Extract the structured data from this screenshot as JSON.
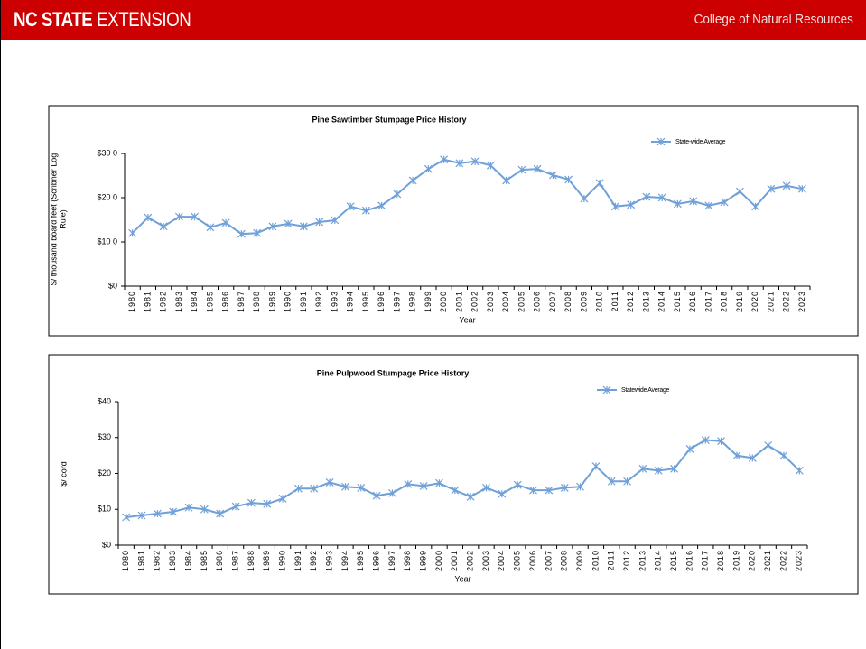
{
  "header": {
    "brand_bold": "NC STATE",
    "brand": "EXTENSION",
    "college": "College of Natural Resources"
  },
  "chart_data": [
    {
      "type": "line",
      "title": "Pine Sawtimber Stumpage Price History",
      "x_label": "Year",
      "y_label": [
        "$/ thousand board feet (Scribner Log",
        "Rule)"
      ],
      "categories": [
        "1980",
        "1981",
        "1982",
        "1983",
        "1984",
        "1985",
        "1986",
        "1987",
        "1988",
        "1989",
        "1990",
        "1991",
        "1992",
        "1993",
        "1994",
        "1995",
        "1996",
        "1997",
        "1998",
        "1999",
        "2000",
        "2001",
        "2002",
        "2003",
        "2004",
        "2005",
        "2006",
        "2007",
        "2008",
        "2009",
        "2010",
        "2011",
        "2012",
        "2013",
        "2014",
        "2015",
        "2016",
        "2017",
        "2018",
        "2019",
        "2020",
        "2021",
        "2022",
        "2023"
      ],
      "series": [
        {
          "name": "State-wide Average",
          "color": "#6fa0d8",
          "values": [
            120,
            155,
            135,
            157,
            157,
            133,
            143,
            118,
            120,
            135,
            141,
            135,
            145,
            149,
            180,
            171,
            182,
            208,
            239,
            265,
            286,
            278,
            282,
            273,
            239,
            263,
            265,
            251,
            241,
            198,
            233,
            180,
            184,
            202,
            200,
            186,
            192,
            182,
            190,
            214,
            180,
            220,
            227,
            220
          ]
        }
      ],
      "ylim": [
        0,
        300
      ],
      "yticks": [
        {
          "value": 0,
          "label": "$0"
        },
        {
          "value": 100,
          "label": "$10 0"
        },
        {
          "value": 200,
          "label": "$20 0"
        },
        {
          "value": 300,
          "label": "$30 0"
        }
      ],
      "grid": false,
      "legend": "top-right"
    },
    {
      "type": "line",
      "title": "Pine Pulpwood Stumpage Price History",
      "x_label": "Year",
      "y_label": [
        "$/ cord"
      ],
      "categories": [
        "1980",
        "1981",
        "1982",
        "1983",
        "1984",
        "1985",
        "1986",
        "1987",
        "1988",
        "1989",
        "1990",
        "1991",
        "1992",
        "1993",
        "1994",
        "1995",
        "1996",
        "1997",
        "1998",
        "1999",
        "2000",
        "2001",
        "2002",
        "2003",
        "2004",
        "2005",
        "2006",
        "2007",
        "2008",
        "2009",
        "2010",
        "2011",
        "2012",
        "2013",
        "2014",
        "2015",
        "2016",
        "2017",
        "2018",
        "2019",
        "2020",
        "2021",
        "2022",
        "2023"
      ],
      "series": [
        {
          "name": "Statewide Average",
          "color": "#6fa0d8",
          "values": [
            7.8,
            8.3,
            8.8,
            9.3,
            10.5,
            10,
            8.8,
            10.8,
            11.8,
            11.5,
            13,
            15.8,
            15.8,
            17.5,
            16.3,
            16,
            13.8,
            14.5,
            17,
            16.5,
            17.3,
            15.3,
            13.5,
            16,
            14.3,
            16.8,
            15.3,
            15.3,
            16,
            16.3,
            22,
            17.8,
            17.8,
            21.3,
            20.8,
            21.3,
            26.8,
            29.3,
            29,
            25,
            24.3,
            27.8,
            25,
            20.8
          ]
        }
      ],
      "ylim": [
        0,
        40
      ],
      "yticks": [
        {
          "value": 0,
          "label": "$0"
        },
        {
          "value": 10,
          "label": "$10"
        },
        {
          "value": 20,
          "label": "$20"
        },
        {
          "value": 30,
          "label": "$30"
        },
        {
          "value": 40,
          "label": "$40"
        }
      ],
      "grid": false,
      "legend": "top-right"
    }
  ]
}
